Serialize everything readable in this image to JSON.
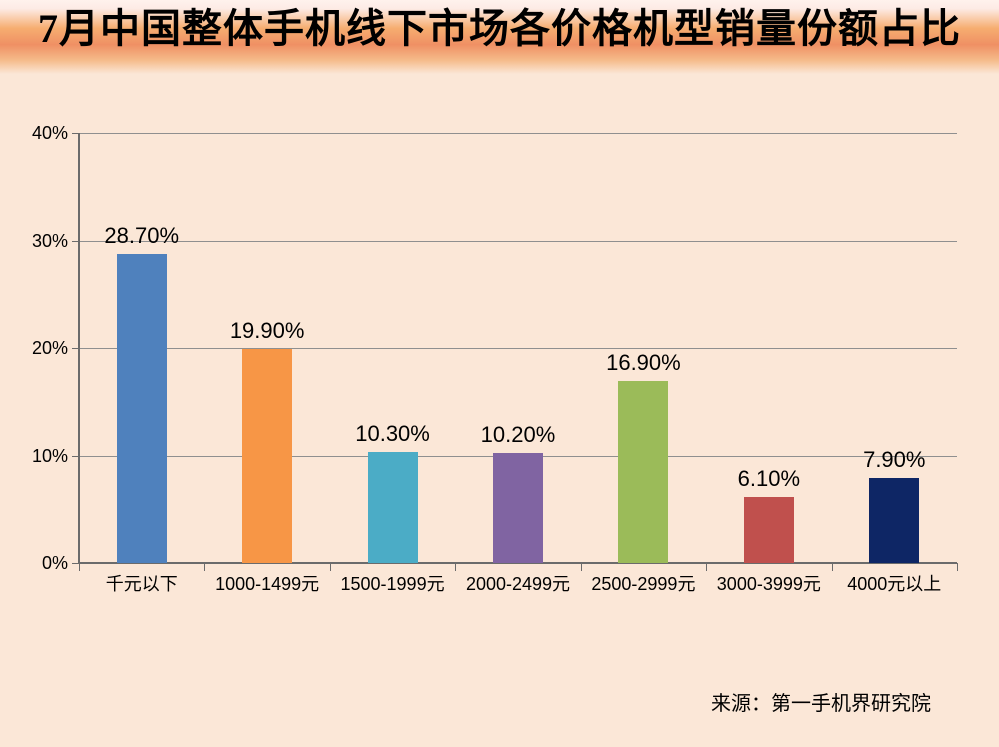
{
  "title": "7月中国整体手机线下市场各价格机型销量份额占比",
  "source": "来源：第一手机界研究院",
  "colors": {
    "background": "#FBE7D7",
    "banner_highlight": "#FFF2ED",
    "banner_orange": "#F6AD70",
    "banner_deep_orange": "#EF9064",
    "gridline": "#8F8F8F",
    "axis": "#6B6B6B",
    "text": "#000000"
  },
  "chart_data": {
    "type": "bar",
    "title": "7月中国整体手机线下市场各价格机型销量份额占比",
    "categories": [
      "千元以下",
      "1000-1499元",
      "1500-1999元",
      "2000-2499元",
      "2500-2999元",
      "3000-3999元",
      "4000元以上"
    ],
    "values": [
      28.7,
      19.9,
      10.3,
      10.2,
      16.9,
      6.1,
      7.9
    ],
    "value_labels": [
      "28.70%",
      "19.90%",
      "10.30%",
      "10.20%",
      "16.90%",
      "6.10%",
      "7.90%"
    ],
    "bar_colors": [
      "#4F81BD",
      "#F79646",
      "#4BACC6",
      "#8064A2",
      "#9BBB59",
      "#C0504D",
      "#0E2665"
    ],
    "xlabel": "",
    "ylabel": "",
    "ylim": [
      0,
      40
    ],
    "ytick_step": 10,
    "ytick_labels": [
      "0%",
      "10%",
      "20%",
      "30%",
      "40%"
    ],
    "grid": true,
    "legend": "none",
    "source": "来源：第一手机界研究院"
  }
}
